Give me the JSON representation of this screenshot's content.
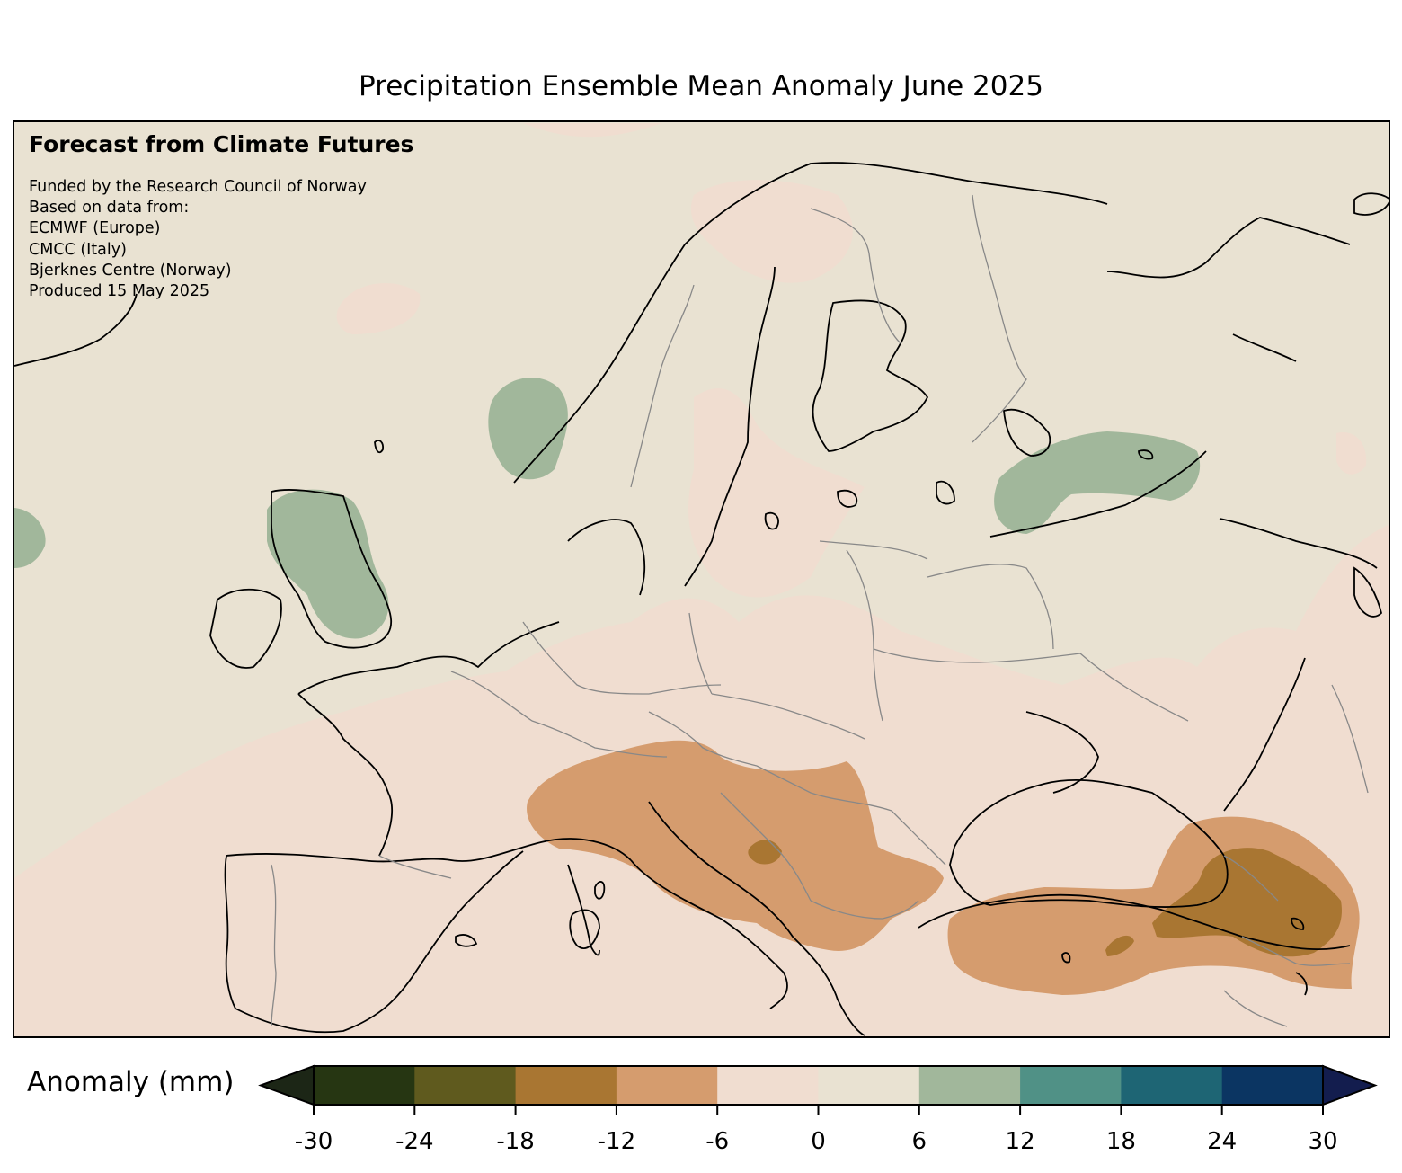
{
  "title": "Precipitation Ensemble Mean Anomaly June 2025",
  "credits": {
    "heading": "Forecast from Climate Futures",
    "lines": [
      "Funded by the Research Council of Norway",
      "Based on data from:",
      "ECMWF (Europe)",
      "CMCC (Italy)",
      "Bjerknes Centre (Norway)",
      "Produced 15 May 2025"
    ]
  },
  "colorbar": {
    "label": "Anomaly (mm)",
    "ticks": [
      "-30",
      "-24",
      "-18",
      "-12",
      "-6",
      "0",
      "6",
      "12",
      "18",
      "24",
      "30"
    ],
    "bins": [
      {
        "from": -30,
        "to": -24,
        "color": "#263612"
      },
      {
        "from": -24,
        "to": -18,
        "color": "#5f5a1e"
      },
      {
        "from": -18,
        "to": -12,
        "color": "#a97632"
      },
      {
        "from": -12,
        "to": -6,
        "color": "#d59c6e"
      },
      {
        "from": -6,
        "to": 0,
        "color": "#f0ddd0"
      },
      {
        "from": 0,
        "to": 6,
        "color": "#e9e2d2"
      },
      {
        "from": 6,
        "to": 12,
        "color": "#a1b79b"
      },
      {
        "from": 12,
        "to": 18,
        "color": "#509186"
      },
      {
        "from": 18,
        "to": 24,
        "color": "#1e6574"
      },
      {
        "from": 24,
        "to": 30,
        "color": "#0b3562"
      }
    ],
    "under_color": "#1c2616",
    "over_color": "#131d4e"
  }
}
